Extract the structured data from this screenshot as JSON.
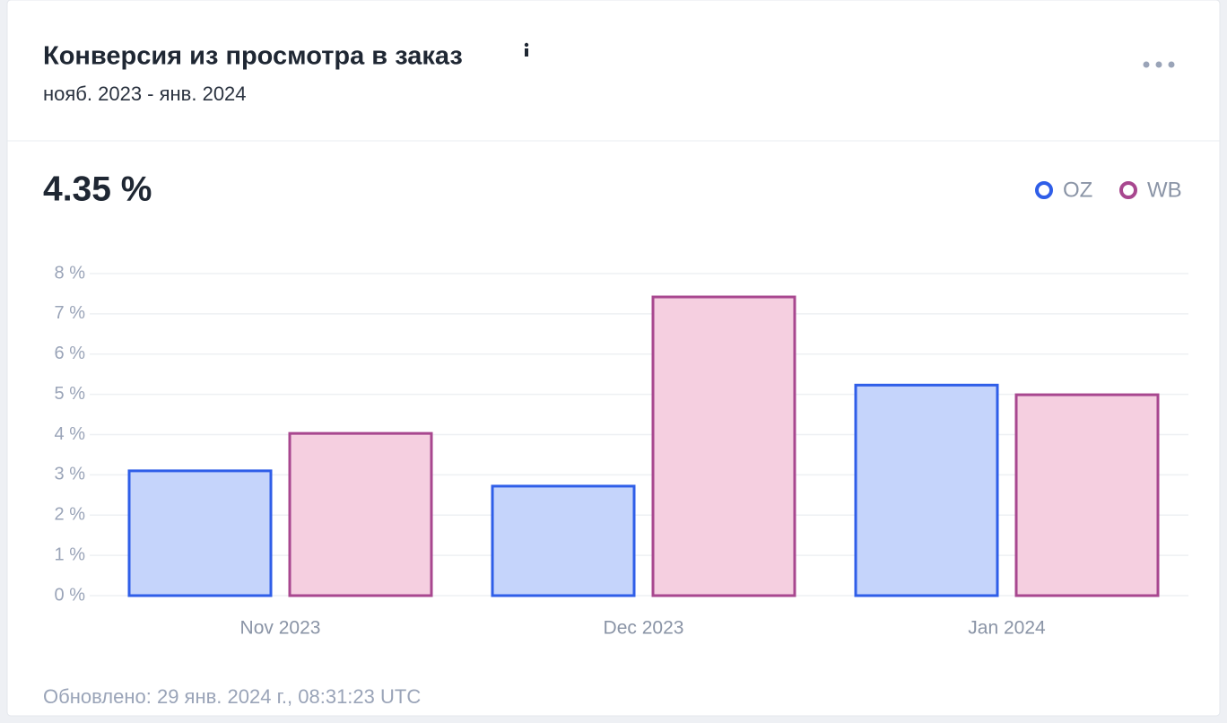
{
  "header": {
    "title": "Конверсия из просмотра в заказ",
    "subtitle": "нояб. 2023 - янв. 2024"
  },
  "metric": "4.35 %",
  "footer": "Обновлено: 29 янв. 2024 г., 08:31:23 UTC",
  "chart_data": {
    "type": "bar",
    "categories": [
      "Nov 2023",
      "Dec 2023",
      "Jan 2024"
    ],
    "series": [
      {
        "name": "OZ",
        "color": "#2f5ee8",
        "fill": "#c5d4fb",
        "values": [
          3.1,
          2.72,
          5.23
        ]
      },
      {
        "name": "WB",
        "color": "#a8478f",
        "fill": "#f5cfe0",
        "values": [
          4.03,
          7.42,
          4.99
        ]
      }
    ],
    "ylim": [
      0,
      8
    ],
    "yticks": [
      {
        "value": 0,
        "label": "0 %"
      },
      {
        "value": 1,
        "label": "1 %"
      },
      {
        "value": 2,
        "label": "2 %"
      },
      {
        "value": 3,
        "label": "3 %"
      },
      {
        "value": 4,
        "label": "4 %"
      },
      {
        "value": 5,
        "label": "5 %"
      },
      {
        "value": 6,
        "label": "6 %"
      },
      {
        "value": 7,
        "label": "7 %"
      },
      {
        "value": 8,
        "label": "8 %"
      }
    ],
    "grid": true
  }
}
